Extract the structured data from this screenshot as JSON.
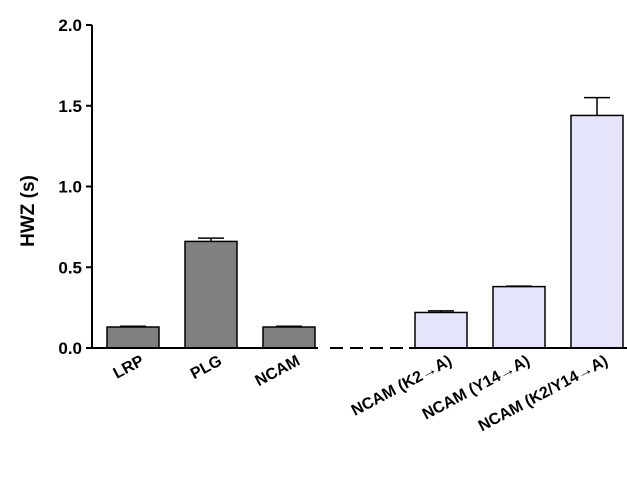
{
  "chart_data": {
    "type": "bar",
    "title": "",
    "xlabel": "",
    "ylabel": "HWZ (s)",
    "ylim": [
      0,
      2.0
    ],
    "yticks": [
      "0.0",
      "0.5",
      "1.0",
      "1.5",
      "2.0"
    ],
    "ytick_values": [
      0,
      0.5,
      1.0,
      1.5,
      2.0
    ],
    "grid": false,
    "legend": "none",
    "categories": [
      "LRP",
      "PLG",
      "NCAM",
      "NCAM (K2→A)",
      "NCAM (Y14→A)",
      "NCAM (K2/Y14→A)"
    ],
    "values": [
      0.13,
      0.66,
      0.13,
      0.22,
      0.38,
      1.44
    ],
    "errors": [
      0.005,
      0.02,
      0.005,
      0.01,
      0.003,
      0.11
    ],
    "colors": [
      "#808080",
      "#808080",
      "#808080",
      "#e4e4fb",
      "#e4e4fb",
      "#e4e4fb"
    ],
    "edge_color": "#000000"
  }
}
